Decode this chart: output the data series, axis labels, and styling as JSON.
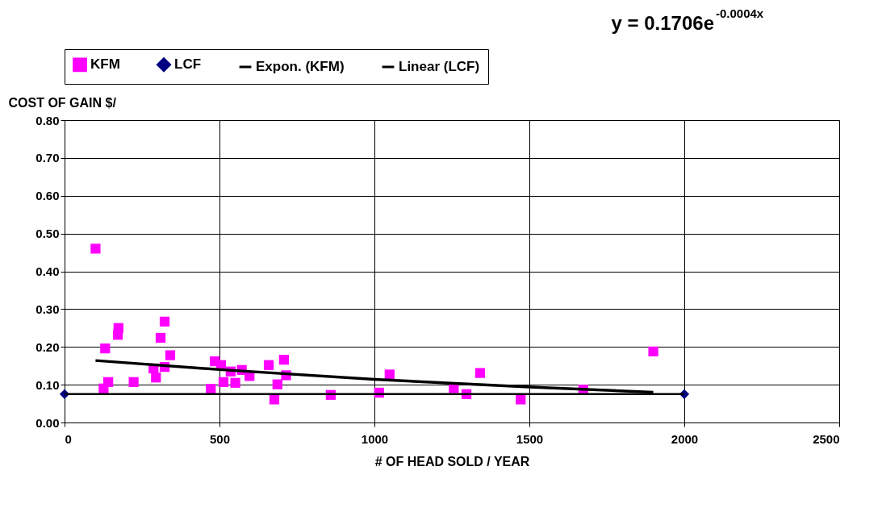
{
  "chart_data": {
    "type": "scatter",
    "xlabel": "# OF HEAD SOLD / YEAR",
    "ylabel": "COST OF GAIN $/",
    "annotations": [
      "y = 0.1706e$^{-0.0004x}$"
    ],
    "xlim": [
      0,
      2500
    ],
    "xticks": [
      0,
      500,
      1000,
      1500,
      2000,
      2500
    ],
    "ylim": [
      0,
      0.8
    ],
    "yticks": [
      {
        "value": 0,
        "label": "0.00"
      },
      {
        "value": 0.1,
        "label": "0.10"
      },
      {
        "value": 0.2,
        "label": "0.20"
      },
      {
        "value": 0.3,
        "label": "0.30"
      },
      {
        "value": 0.4,
        "label": "0.40"
      },
      {
        "value": 0.5,
        "label": "0.50"
      },
      {
        "value": 0.6,
        "label": "0.60"
      },
      {
        "value": 0.7,
        "label": "0.70"
      },
      {
        "value": 0.8,
        "label": "0.80"
      }
    ],
    "grid": true,
    "legend": "top",
    "series": [
      {
        "name": "KFM",
        "marker": "square",
        "color": "#ff00ff",
        "x": [
          100,
          126,
          131,
          141,
          172,
          174,
          223,
          287,
          295,
          310,
          323,
          323,
          341,
          472,
          485,
          505,
          513,
          536,
          551,
          572,
          597,
          659,
          677,
          687,
          708,
          715,
          859,
          1015,
          1049,
          1256,
          1297,
          1341,
          1472,
          1674,
          1900
        ],
        "values": [
          0.46,
          0.09,
          0.196,
          0.107,
          0.232,
          0.25,
          0.107,
          0.143,
          0.119,
          0.224,
          0.267,
          0.147,
          0.178,
          0.089,
          0.162,
          0.152,
          0.107,
          0.135,
          0.105,
          0.139,
          0.123,
          0.152,
          0.061,
          0.101,
          0.166,
          0.125,
          0.073,
          0.079,
          0.127,
          0.091,
          0.075,
          0.131,
          0.061,
          0.087,
          0.188
        ]
      },
      {
        "name": "LCF",
        "marker": "diamond",
        "color": "#000080",
        "x": [
          0,
          2000
        ],
        "values": [
          0.075,
          0.075
        ]
      },
      {
        "name": "Expon. (KFM)",
        "type": "line",
        "line_style": "solid",
        "color": "#000000",
        "x": [
          100,
          500,
          1000,
          1500,
          1900
        ],
        "values": [
          0.164,
          0.14,
          0.114,
          0.094,
          0.08
        ]
      },
      {
        "name": "Linear (LCF)",
        "type": "line",
        "line_style": "solid",
        "color": "#000000",
        "x": [
          0,
          2000
        ],
        "values": [
          0.075,
          0.075
        ]
      }
    ]
  }
}
